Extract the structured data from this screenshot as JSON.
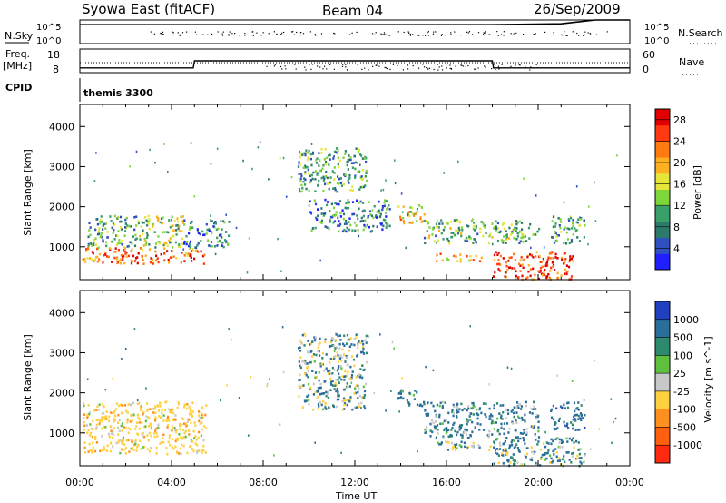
{
  "header": {
    "station": "Syowa East (fitACF)",
    "beam": "Beam 04",
    "date": "26/Sep/2009"
  },
  "panels": {
    "nsky_label": "N.Sky",
    "nsky_top": "10^5",
    "nsky_bottom": "10^0",
    "nsearch_label": "N.Search",
    "nsearch_top": "10^5",
    "nsearch_bottom": "10^0",
    "freq_label": "Freq.",
    "freq_unit": "[MHz]",
    "freq_top": "18",
    "freq_bottom": "8",
    "nave_label": "Nave",
    "nave_top": "60",
    "nave_bottom": "0",
    "cpid_label": "CPID",
    "cpid_value": "themis 3300"
  },
  "axes": {
    "x_label": "Time UT",
    "x_ticks": [
      "00:00",
      "04:00",
      "08:00",
      "12:00",
      "16:00",
      "20:00",
      "00:00"
    ],
    "y_label_top": "Slant Range [km]",
    "y_label_bottom": "Slant Range [km]",
    "y_ticks": [
      "1000",
      "2000",
      "3000",
      "4000"
    ]
  },
  "colorbars": {
    "power": {
      "label": "Power [dB]",
      "ticks": [
        "4",
        "8",
        "12",
        "16",
        "20",
        "24",
        "28"
      ],
      "colors": [
        "#1f1fff",
        "#3050c0",
        "#2e7a6a",
        "#3aa06a",
        "#7fd63a",
        "#e6e63a",
        "#ffb020",
        "#ff7a10",
        "#ff3a10",
        "#e00000"
      ]
    },
    "velocity": {
      "label": "Velocity [m s^-1]",
      "ticks": [
        "1000",
        "500",
        "100",
        "25",
        "-25",
        "-100",
        "-500",
        "-1000"
      ],
      "colors": [
        "#2040c0",
        "#2a6e9a",
        "#2e8a6e",
        "#5fc040",
        "#c8c8c8",
        "#ffd040",
        "#ff9020",
        "#ff6010",
        "#ff2a10"
      ]
    }
  },
  "chart_data": [
    {
      "type": "line",
      "title": "Syowa East (fitACF)",
      "series": [
        {
          "name": "N.Sky",
          "x_hours": [
            0,
            1,
            5,
            10,
            14,
            18,
            21,
            22.5,
            24
          ],
          "values": [
            4,
            4,
            4,
            4,
            4,
            4,
            4.2,
            5,
            5
          ]
        },
        {
          "name": "Freq.",
          "x_hours": [
            0,
            4.95,
            5,
            18,
            18.05,
            24
          ],
          "values": [
            10,
            10,
            13,
            13,
            10,
            10
          ]
        }
      ],
      "xlim": [
        0,
        24
      ],
      "xlabel": "Time UT"
    },
    {
      "type": "heatmap",
      "title": "Power [dB]",
      "xlabel": "Time UT",
      "ylabel": "Slant Range [km]",
      "xlim": [
        0,
        24
      ],
      "ylim": [
        180,
        4550
      ],
      "colorbar_range": [
        0,
        30
      ],
      "echo_regions": [
        {
          "t0": 0.1,
          "t1": 5.5,
          "r0": 600,
          "r1": 1000,
          "power": 24
        },
        {
          "t0": 0.3,
          "t1": 2.5,
          "r0": 1000,
          "r1": 1800,
          "power": 10
        },
        {
          "t0": 2.5,
          "t1": 4.5,
          "r0": 1000,
          "r1": 1800,
          "power": 14
        },
        {
          "t0": 4.5,
          "t1": 6.5,
          "r0": 1000,
          "r1": 1700,
          "power": 8
        },
        {
          "t0": 9.5,
          "t1": 12.5,
          "r0": 2400,
          "r1": 3500,
          "power": 10
        },
        {
          "t0": 10,
          "t1": 13.5,
          "r0": 1400,
          "r1": 2200,
          "power": 8
        },
        {
          "t0": 13.8,
          "t1": 15,
          "r0": 1600,
          "r1": 2100,
          "power": 18
        },
        {
          "t0": 15,
          "t1": 20,
          "r0": 1100,
          "r1": 1700,
          "power": 12
        },
        {
          "t0": 15.5,
          "t1": 17.5,
          "r0": 650,
          "r1": 850,
          "power": 20
        },
        {
          "t0": 18,
          "t1": 21.5,
          "r0": 200,
          "r1": 900,
          "power": 26
        },
        {
          "t0": 20.5,
          "t1": 22,
          "r0": 1100,
          "r1": 1800,
          "power": 10
        }
      ]
    },
    {
      "type": "heatmap",
      "title": "Velocity [m s^-1]",
      "xlabel": "Time UT",
      "ylabel": "Slant Range [km]",
      "xlim": [
        0,
        24
      ],
      "ylim": [
        180,
        4550
      ],
      "colorbar_range": [
        -1000,
        1000
      ],
      "echo_regions": [
        {
          "t0": 0.1,
          "t1": 5.5,
          "r0": 500,
          "r1": 1800,
          "velocity": -300
        },
        {
          "t0": 9.5,
          "t1": 12.5,
          "r0": 1600,
          "r1": 3500,
          "velocity": 60
        },
        {
          "t0": 13.8,
          "t1": 15,
          "r0": 1700,
          "r1": 2100,
          "velocity": 300
        },
        {
          "t0": 15,
          "t1": 20,
          "r0": 900,
          "r1": 1800,
          "velocity": 200
        },
        {
          "t0": 15.5,
          "t1": 18.5,
          "r0": 600,
          "r1": 850,
          "velocity": 80
        },
        {
          "t0": 18,
          "t1": 22,
          "r0": 200,
          "r1": 900,
          "velocity": 120
        },
        {
          "t0": 20.5,
          "t1": 22,
          "r0": 1100,
          "r1": 1800,
          "velocity": 300
        }
      ]
    }
  ]
}
